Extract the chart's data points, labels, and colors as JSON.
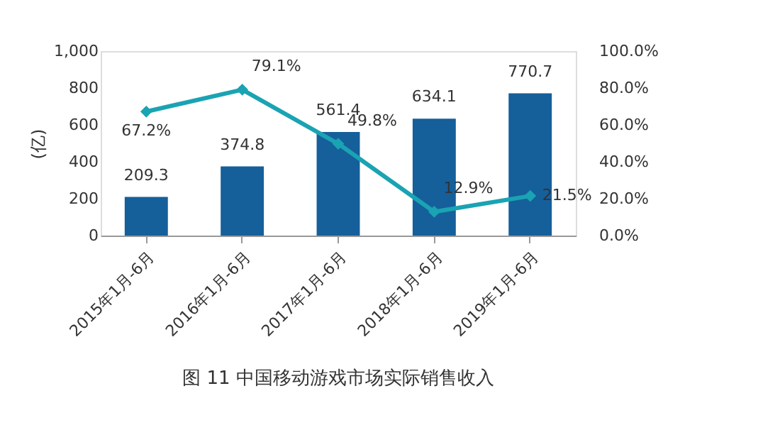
{
  "chart_data": {
    "type": "bar",
    "title": "图 11  中国移动游戏市场实际销售收入",
    "ylabel": "(亿)",
    "categories": [
      "2015年1月-6月",
      "2016年1月-6月",
      "2017年1月-6月",
      "2018年1月-6月",
      "2019年1月-6月"
    ],
    "series": [
      {
        "color": "#155f9b",
        "values": [
          209.3,
          374.8,
          561.4,
          634.1,
          770.7
        ],
        "value_labels": [
          "209.3",
          "374.8",
          "561.4",
          "634.1",
          "770.7"
        ]
      },
      {
        "type": "line",
        "axis": "y2",
        "color": "#1aa3b3",
        "marker": "diamond",
        "values": [
          67.2,
          79.1,
          49.8,
          12.9,
          21.5
        ],
        "value_labels": [
          "67.2%",
          "79.1%",
          "49.8%",
          "12.9%",
          "21.5%"
        ]
      }
    ],
    "ylim": [
      0,
      1000
    ],
    "yticks": [
      0,
      200,
      400,
      600,
      800,
      {
        "value": 1000,
        "label": "1,000"
      }
    ],
    "y2lim": [
      0,
      100
    ],
    "y2ticks": [
      {
        "value": 0,
        "label": "0.0%"
      },
      {
        "value": 20,
        "label": "20.0%"
      },
      {
        "value": 40,
        "label": "40.0%"
      },
      {
        "value": 60,
        "label": "60.0%"
      },
      {
        "value": 80,
        "label": "80.0%"
      },
      {
        "value": 100,
        "label": "100.0%"
      }
    ],
    "grid": false,
    "legend": false
  }
}
